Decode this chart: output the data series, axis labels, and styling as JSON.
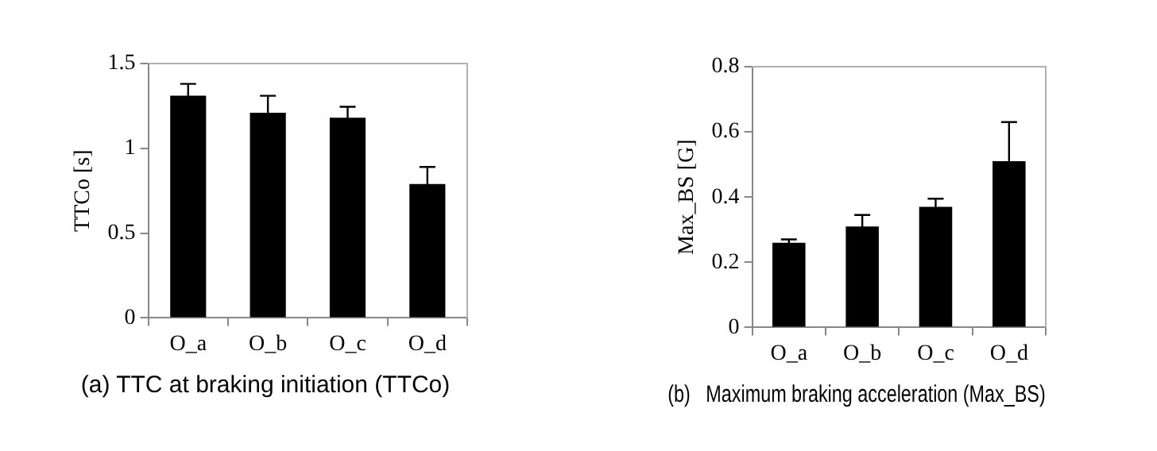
{
  "chart_data": [
    {
      "type": "bar",
      "title": "(a) TTC at braking initiation (TTCo)",
      "ylabel": "TTCo [s]",
      "categories": [
        "O_a",
        "O_b",
        "O_c",
        "O_d"
      ],
      "values": [
        1.31,
        1.21,
        1.18,
        0.79
      ],
      "errors": [
        0.07,
        0.1,
        0.065,
        0.1
      ],
      "color": "#000000",
      "ylim": [
        0,
        1.5
      ],
      "yticks": [
        0,
        {
          "value": 0.5,
          "label": "0.5"
        },
        1,
        1.5
      ],
      "grid": false,
      "legend": false
    },
    {
      "type": "bar",
      "title": "(b)   Maximum braking acceleration (Max_BS)",
      "ylabel": "Max_BS [G]",
      "categories": [
        "O_a",
        "O_b",
        "O_c",
        "O_d"
      ],
      "values": [
        0.26,
        0.31,
        0.37,
        0.51
      ],
      "errors": [
        0.01,
        0.035,
        0.025,
        0.12
      ],
      "color": "#000000",
      "ylim": [
        0,
        0.8
      ],
      "yticks": [
        0,
        {
          "value": 0.2,
          "label": "0.2"
        },
        {
          "value": 0.4,
          "label": "0.4"
        },
        {
          "value": 0.6,
          "label": "0.6"
        },
        {
          "value": 0.8,
          "label": "0.8"
        }
      ],
      "grid": false,
      "legend": false
    }
  ]
}
